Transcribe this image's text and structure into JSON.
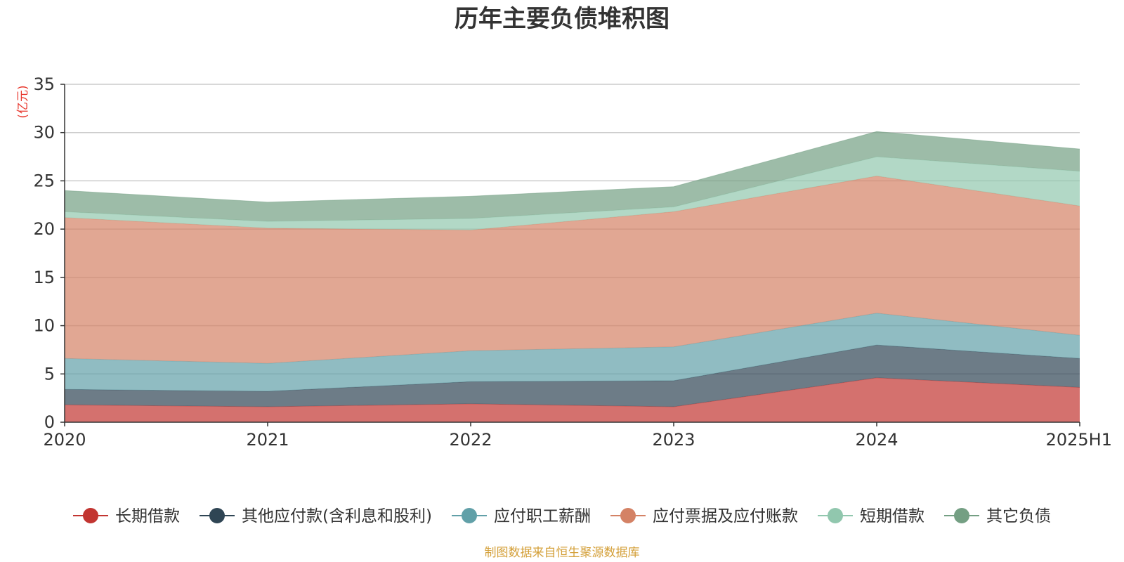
{
  "chart_data": {
    "type": "area",
    "stacked": true,
    "title": "历年主要负债堆积图",
    "unit_label": "(亿元)",
    "categories": [
      "2020",
      "2021",
      "2022",
      "2023",
      "2024",
      "2025H1"
    ],
    "ylim": [
      0,
      35
    ],
    "yticks": [
      "0",
      "5",
      "10",
      "15",
      "20",
      "25",
      "30",
      "35"
    ],
    "grid": true,
    "legend_position": "bottom",
    "series": [
      {
        "name": "长期借款",
        "color": "#c23531",
        "values": [
          1.8,
          1.6,
          1.9,
          1.6,
          4.6,
          3.6
        ]
      },
      {
        "name": "其他应付款(含利息和股利)",
        "color": "#2f4554",
        "values": [
          1.6,
          1.6,
          2.3,
          2.7,
          3.4,
          3.0
        ]
      },
      {
        "name": "应付职工薪酬",
        "color": "#61a0a8",
        "values": [
          3.2,
          2.9,
          3.2,
          3.5,
          3.3,
          2.4
        ]
      },
      {
        "name": "应付票据及应付账款",
        "color": "#d48265",
        "values": [
          14.6,
          14.0,
          12.5,
          14.0,
          14.2,
          13.4
        ]
      },
      {
        "name": "短期借款",
        "color": "#91c7ae",
        "values": [
          0.6,
          0.7,
          1.2,
          0.5,
          2.0,
          3.6
        ]
      },
      {
        "name": "其它负债",
        "color": "#749f83",
        "values": [
          2.2,
          2.0,
          2.3,
          2.1,
          2.6,
          2.3
        ]
      }
    ],
    "source": "制图数据来自恒生聚源数据库"
  }
}
